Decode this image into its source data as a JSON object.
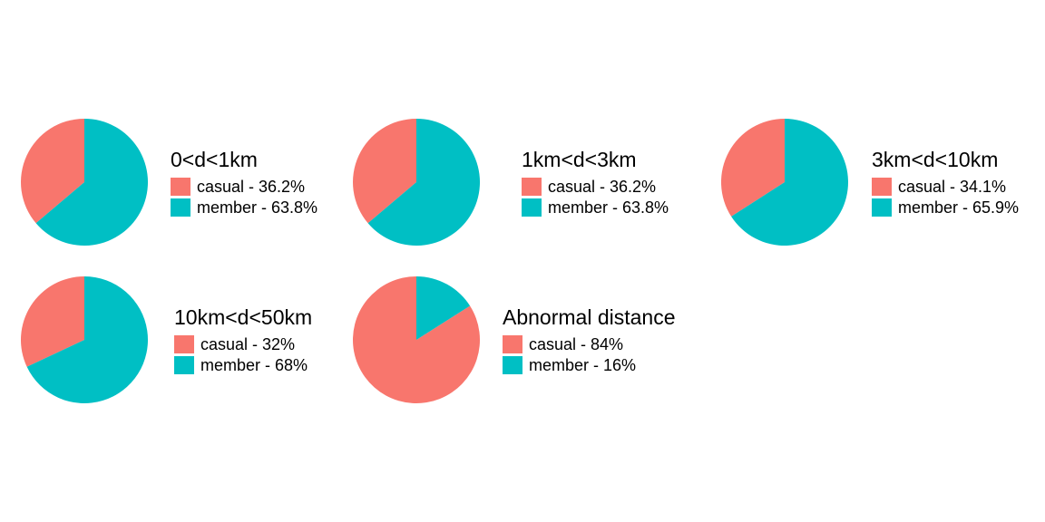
{
  "chart_data": [
    {
      "type": "pie",
      "title": "0<d<1km",
      "slices": [
        {
          "name": "casual",
          "value": 36.2,
          "label": "casual - 36.2%"
        },
        {
          "name": "member",
          "value": 63.8,
          "label": "member - 63.8%"
        }
      ]
    },
    {
      "type": "pie",
      "title": "1km<d<3km",
      "slices": [
        {
          "name": "casual",
          "value": 36.2,
          "label": "casual - 36.2%"
        },
        {
          "name": "member",
          "value": 63.8,
          "label": "member - 63.8%"
        }
      ]
    },
    {
      "type": "pie",
      "title": "3km<d<10km",
      "slices": [
        {
          "name": "casual",
          "value": 34.1,
          "label": "casual - 34.1%"
        },
        {
          "name": "member",
          "value": 65.9,
          "label": "member - 65.9%"
        }
      ]
    },
    {
      "type": "pie",
      "title": "10km<d<50km",
      "slices": [
        {
          "name": "casual",
          "value": 32,
          "label": "casual - 32%"
        },
        {
          "name": "member",
          "value": 68,
          "label": "member - 68%"
        }
      ]
    },
    {
      "type": "pie",
      "title": "Abnormal distance",
      "slices": [
        {
          "name": "casual",
          "value": 84,
          "label": "casual - 84%"
        },
        {
          "name": "member",
          "value": 16,
          "label": "member - 16%"
        }
      ]
    }
  ],
  "colors": {
    "casual": "#F8766D",
    "member": "#00BFC4"
  },
  "legend_position": "right"
}
